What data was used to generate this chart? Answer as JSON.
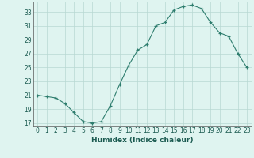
{
  "x": [
    0,
    1,
    2,
    3,
    4,
    5,
    6,
    7,
    8,
    9,
    10,
    11,
    12,
    13,
    14,
    15,
    16,
    17,
    18,
    19,
    20,
    21,
    22,
    23
  ],
  "y": [
    21.0,
    20.8,
    20.6,
    19.8,
    18.5,
    17.2,
    17.0,
    17.2,
    19.5,
    22.5,
    25.3,
    27.5,
    28.3,
    31.0,
    31.5,
    33.3,
    33.8,
    34.0,
    33.5,
    31.5,
    30.0,
    29.5,
    27.0,
    25.0
  ],
  "line_color": "#2e7d6e",
  "marker": "+",
  "marker_size": 3,
  "bg_color": "#dff4f0",
  "grid_color": "#b8d8d2",
  "xlabel": "Humidex (Indice chaleur)",
  "ylim": [
    16.5,
    34.5
  ],
  "yticks": [
    17,
    19,
    21,
    23,
    25,
    27,
    29,
    31,
    33
  ],
  "xticks": [
    0,
    1,
    2,
    3,
    4,
    5,
    6,
    7,
    8,
    9,
    10,
    11,
    12,
    13,
    14,
    15,
    16,
    17,
    18,
    19,
    20,
    21,
    22,
    23
  ],
  "tick_fontsize": 5.5,
  "xlabel_fontsize": 6.5
}
